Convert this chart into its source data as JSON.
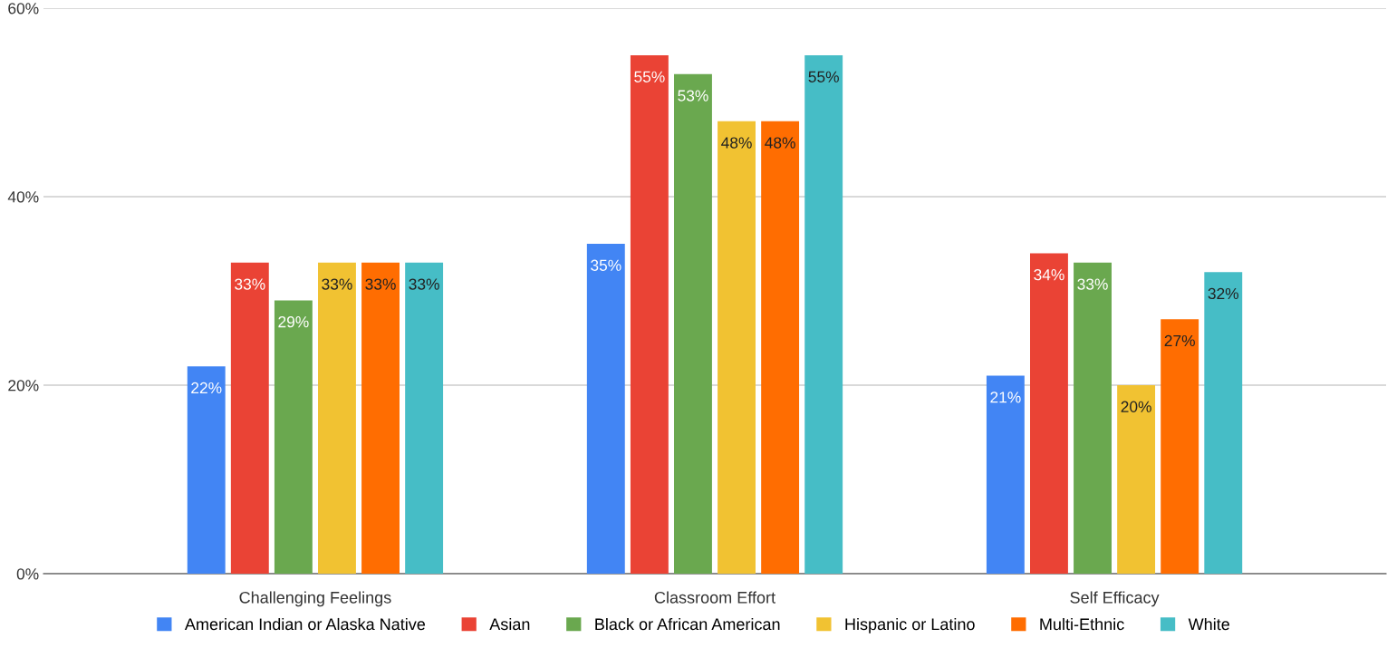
{
  "chart_data": {
    "type": "bar",
    "categories": [
      "Challenging Feelings",
      "Classroom Effort",
      "Self Efficacy"
    ],
    "series": [
      {
        "name": "American Indian or Alaska Native",
        "color": "#4285f4",
        "values": [
          22,
          35,
          21
        ],
        "value_labels": [
          "22%",
          "35%",
          "21%"
        ]
      },
      {
        "name": "Asian",
        "color": "#ea4335",
        "values": [
          33,
          55,
          34
        ],
        "value_labels": [
          "33%",
          "55%",
          "34%"
        ]
      },
      {
        "name": "Black or African American",
        "color": "#6aa84f",
        "values": [
          29,
          53,
          33
        ],
        "value_labels": [
          "29%",
          "53%",
          "33%"
        ]
      },
      {
        "name": "Hispanic or Latino",
        "color": "#f1c232",
        "values": [
          33,
          48,
          20
        ],
        "value_labels": [
          "33%",
          "48%",
          "20%"
        ]
      },
      {
        "name": "Multi-Ethnic",
        "color": "#ff6d01",
        "values": [
          33,
          48,
          27
        ],
        "value_labels": [
          "33%",
          "48%",
          "27%"
        ]
      },
      {
        "name": "White",
        "color": "#46bdc6",
        "values": [
          33,
          55,
          32
        ],
        "value_labels": [
          "33%",
          "55%",
          "32%"
        ]
      }
    ],
    "ylim": [
      0,
      60
    ],
    "yticks": [
      {
        "value": 0,
        "label": "0%"
      },
      {
        "value": 20,
        "label": "20%"
      },
      {
        "value": 40,
        "label": "40%"
      },
      {
        "value": 60,
        "label": "60%"
      }
    ],
    "grid": "y",
    "legend": "bottom"
  }
}
